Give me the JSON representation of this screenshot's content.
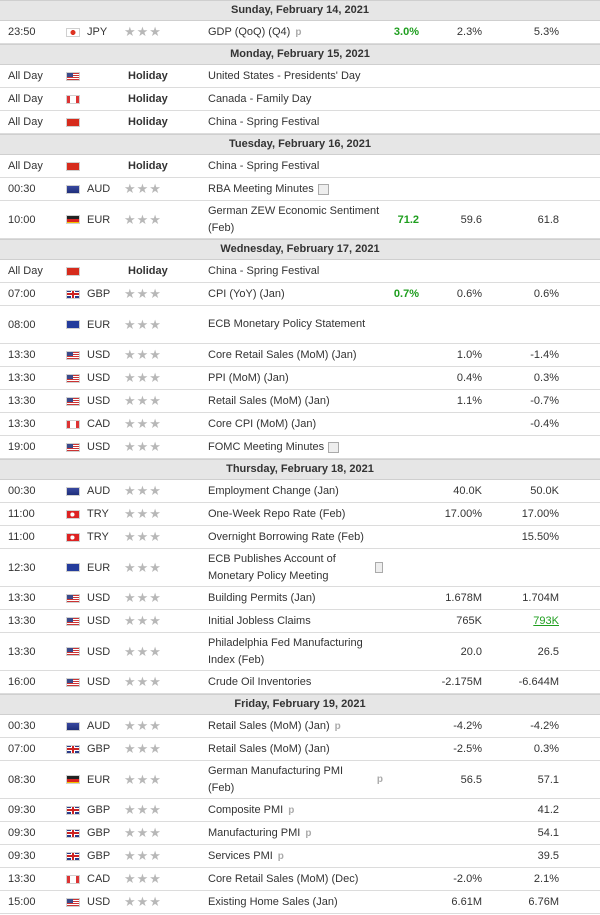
{
  "days": [
    {
      "date": "Sunday, February 14, 2021",
      "events": [
        {
          "time": "23:50",
          "flag": "jp",
          "currency": "JPY",
          "name": "GDP (QoQ) (Q4)",
          "actual": "3.0%",
          "forecast": "2.3%",
          "previous": "5.3%",
          "icon": "preliminary"
        }
      ]
    },
    {
      "date": "Monday, February 15, 2021",
      "events": [
        {
          "time": "All Day",
          "flag": "us",
          "holiday": "Holiday",
          "name": "United States - Presidents' Day"
        },
        {
          "time": "All Day",
          "flag": "ca",
          "holiday": "Holiday",
          "name": "Canada - Family Day"
        },
        {
          "time": "All Day",
          "flag": "cn",
          "holiday": "Holiday",
          "name": "China - Spring Festival"
        }
      ]
    },
    {
      "date": "Tuesday, February 16, 2021",
      "events": [
        {
          "time": "All Day",
          "flag": "cn",
          "holiday": "Holiday",
          "name": "China - Spring Festival"
        },
        {
          "time": "00:30",
          "flag": "au",
          "currency": "AUD",
          "name": "RBA Meeting Minutes",
          "icon": "document"
        },
        {
          "time": "10:00",
          "flag": "de",
          "currency": "EUR",
          "name": "German ZEW Economic Sentiment (Feb)",
          "actual": "71.2",
          "forecast": "59.6",
          "previous": "61.8"
        }
      ]
    },
    {
      "date": "Wednesday, February 17, 2021",
      "events": [
        {
          "time": "All Day",
          "flag": "cn",
          "holiday": "Holiday",
          "name": "China - Spring Festival"
        },
        {
          "time": "07:00",
          "flag": "gb",
          "currency": "GBP",
          "name": "CPI (YoY) (Jan)",
          "actual": "0.7%",
          "forecast": "0.6%",
          "previous": "0.6%"
        },
        {
          "time": "08:00",
          "flag": "eu",
          "currency": "EUR",
          "name": "ECB Monetary Policy Statement"
        },
        {
          "time": "13:30",
          "flag": "us",
          "currency": "USD",
          "name": "Core Retail Sales (MoM) (Jan)",
          "forecast": "1.0%",
          "previous": "-1.4%"
        },
        {
          "time": "13:30",
          "flag": "us",
          "currency": "USD",
          "name": "PPI (MoM) (Jan)",
          "forecast": "0.4%",
          "previous": "0.3%"
        },
        {
          "time": "13:30",
          "flag": "us",
          "currency": "USD",
          "name": "Retail Sales (MoM) (Jan)",
          "forecast": "1.1%",
          "previous": "-0.7%"
        },
        {
          "time": "13:30",
          "flag": "ca",
          "currency": "CAD",
          "name": "Core CPI (MoM) (Jan)",
          "previous": "-0.4%"
        },
        {
          "time": "19:00",
          "flag": "us",
          "currency": "USD",
          "name": "FOMC Meeting Minutes",
          "icon": "document"
        }
      ]
    },
    {
      "date": "Thursday, February 18, 2021",
      "events": [
        {
          "time": "00:30",
          "flag": "au",
          "currency": "AUD",
          "name": "Employment Change (Jan)",
          "forecast": "40.0K",
          "previous": "50.0K"
        },
        {
          "time": "11:00",
          "flag": "tr",
          "currency": "TRY",
          "name": "One-Week Repo Rate (Feb)",
          "forecast": "17.00%",
          "previous": "17.00%"
        },
        {
          "time": "11:00",
          "flag": "tr",
          "currency": "TRY",
          "name": "Overnight Borrowing Rate (Feb)",
          "previous": "15.50%"
        },
        {
          "time": "12:30",
          "flag": "eu",
          "currency": "EUR",
          "name": "ECB Publishes Account of Monetary Policy Meeting",
          "icon": "document"
        },
        {
          "time": "13:30",
          "flag": "us",
          "currency": "USD",
          "name": "Building Permits (Jan)",
          "forecast": "1.678M",
          "previous": "1.704M"
        },
        {
          "time": "13:30",
          "flag": "us",
          "currency": "USD",
          "name": "Initial Jobless Claims",
          "forecast": "765K",
          "previous": "793K",
          "previous_color": "#1e9e1e"
        },
        {
          "time": "13:30",
          "flag": "us",
          "currency": "USD",
          "name": "Philadelphia Fed Manufacturing Index (Feb)",
          "forecast": "20.0",
          "previous": "26.5"
        },
        {
          "time": "16:00",
          "flag": "us",
          "currency": "USD",
          "name": "Crude Oil Inventories",
          "forecast": "-2.175M",
          "previous": "-6.644M"
        }
      ]
    },
    {
      "date": "Friday, February 19, 2021",
      "events": [
        {
          "time": "00:30",
          "flag": "au",
          "currency": "AUD",
          "name": "Retail Sales (MoM) (Jan)",
          "forecast": "-4.2%",
          "previous": "-4.2%",
          "icon": "preliminary"
        },
        {
          "time": "07:00",
          "flag": "gb",
          "currency": "GBP",
          "name": "Retail Sales (MoM) (Jan)",
          "forecast": "-2.5%",
          "previous": "0.3%"
        },
        {
          "time": "08:30",
          "flag": "de",
          "currency": "EUR",
          "name": "German Manufacturing PMI (Feb)",
          "forecast": "56.5",
          "previous": "57.1",
          "icon": "preliminary"
        },
        {
          "time": "09:30",
          "flag": "gb",
          "currency": "GBP",
          "name": "Composite PMI",
          "previous": "41.2",
          "icon": "preliminary"
        },
        {
          "time": "09:30",
          "flag": "gb",
          "currency": "GBP",
          "name": "Manufacturing PMI",
          "previous": "54.1",
          "icon": "preliminary"
        },
        {
          "time": "09:30",
          "flag": "gb",
          "currency": "GBP",
          "name": "Services PMI",
          "previous": "39.5",
          "icon": "preliminary"
        },
        {
          "time": "13:30",
          "flag": "ca",
          "currency": "CAD",
          "name": "Core Retail Sales (MoM) (Dec)",
          "forecast": "-2.0%",
          "previous": "2.1%"
        },
        {
          "time": "15:00",
          "flag": "us",
          "currency": "USD",
          "name": "Existing Home Sales (Jan)",
          "forecast": "6.61M",
          "previous": "6.76M"
        }
      ]
    }
  ],
  "importance_glyph": "★★★",
  "preliminary_glyph": "p",
  "colors": {
    "actual_green": "#1e9e1e",
    "header_bg": "#e6e6e6",
    "star_grey": "#b8b8b8"
  }
}
